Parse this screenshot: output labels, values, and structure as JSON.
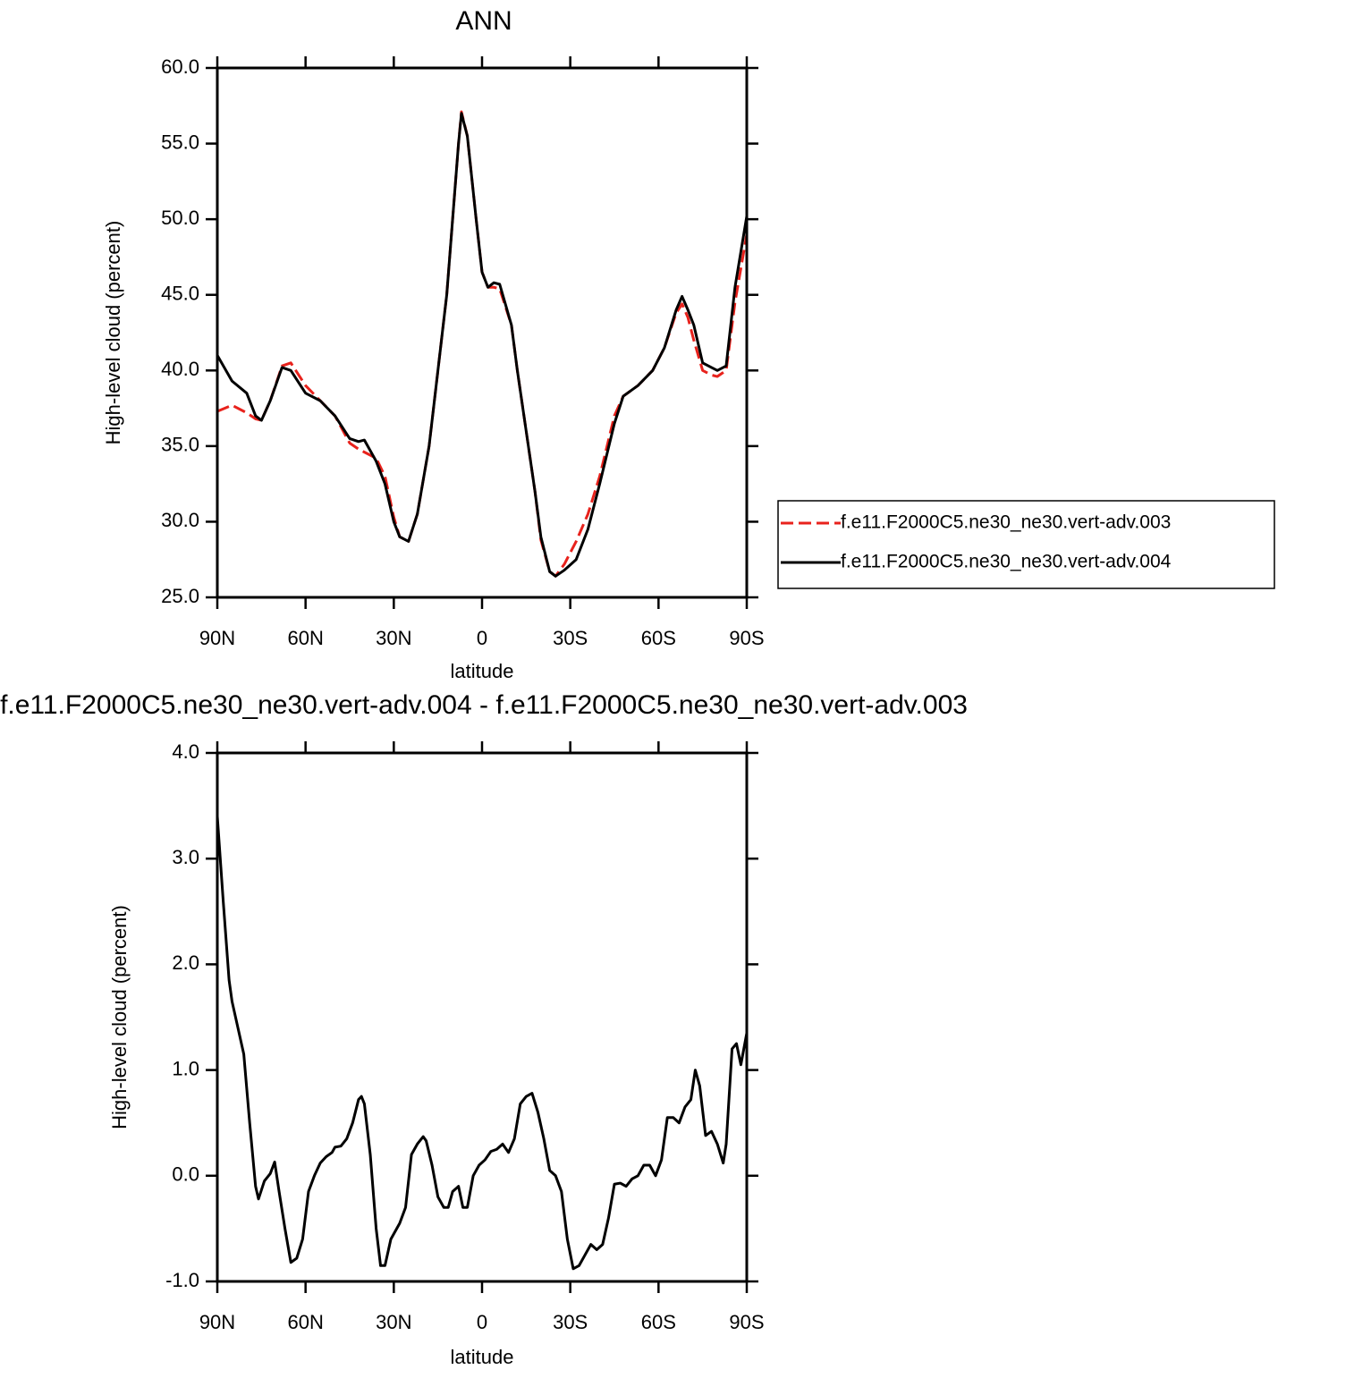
{
  "chart_data": [
    {
      "type": "line",
      "title": "ANN",
      "xlabel": "latitude",
      "ylabel": "High-level cloud (percent)",
      "xlim": [
        90,
        -90
      ],
      "ylim": [
        25,
        60
      ],
      "xticks": [
        {
          "value": 90,
          "label": "90N"
        },
        {
          "value": 60,
          "label": "60N"
        },
        {
          "value": 30,
          "label": "30N"
        },
        0,
        {
          "value": -30,
          "label": "30S"
        },
        {
          "value": -60,
          "label": "60S"
        },
        {
          "value": -90,
          "label": "90S"
        }
      ],
      "yticks": [
        {
          "value": 25,
          "label": "25.0"
        },
        {
          "value": 30,
          "label": "30.0"
        },
        {
          "value": 35,
          "label": "35.0"
        },
        {
          "value": 40,
          "label": "40.0"
        },
        {
          "value": 45,
          "label": "45.0"
        },
        {
          "value": 50,
          "label": "50.0"
        },
        {
          "value": 55,
          "label": "55.0"
        },
        {
          "value": 60,
          "label": "60.0"
        }
      ],
      "legend": "right",
      "x": [
        90,
        85,
        80,
        77,
        75,
        72,
        68,
        65,
        60,
        55,
        50,
        45,
        42,
        40,
        36,
        33,
        30,
        28,
        25,
        22,
        18,
        15,
        12,
        10,
        8,
        7,
        5,
        2,
        0,
        -2,
        -4,
        -6,
        -10,
        -12,
        -15,
        -18,
        -20,
        -23,
        -25,
        -28,
        -32,
        -36,
        -40,
        -45,
        -48,
        -53,
        -58,
        -62,
        -66,
        -68,
        -70,
        -72,
        -75,
        -78,
        -80,
        -83,
        -86,
        -90
      ],
      "series": [
        {
          "name": "f.e11.F2000C5.ne30_ne30.vert-adv.003",
          "color": "#e8221c",
          "line_style": "dashed",
          "values": [
            37.3,
            37.7,
            37.2,
            36.8,
            36.7,
            38.0,
            40.3,
            40.5,
            39.0,
            38.0,
            37.0,
            35.2,
            34.8,
            34.6,
            34.2,
            33.0,
            30.3,
            29.0,
            28.7,
            30.5,
            35.0,
            40.0,
            45.0,
            50.0,
            55.0,
            57.1,
            55.5,
            50.0,
            46.5,
            45.5,
            45.5,
            45.4,
            43.0,
            40.0,
            36.0,
            32.0,
            28.8,
            26.7,
            26.4,
            27.2,
            28.7,
            30.5,
            33.0,
            37.0,
            38.3,
            39.0,
            40.0,
            41.5,
            43.8,
            44.4,
            43.5,
            42.0,
            40.0,
            39.7,
            39.6,
            40.0,
            44.5,
            49.0
          ]
        },
        {
          "name": "f.e11.F2000C5.ne30_ne30.vert-adv.004",
          "color": "#000000",
          "line_style": "solid",
          "values": [
            41.0,
            39.3,
            38.5,
            37.0,
            36.7,
            38.0,
            40.2,
            40.0,
            38.5,
            38.0,
            37.0,
            35.5,
            35.3,
            35.4,
            34.0,
            32.5,
            30.0,
            29.0,
            28.7,
            30.5,
            35.0,
            40.0,
            45.0,
            50.0,
            55.0,
            57.0,
            55.5,
            50.0,
            46.5,
            45.5,
            45.8,
            45.7,
            43.0,
            40.0,
            36.0,
            32.0,
            29.0,
            26.7,
            26.4,
            26.8,
            27.5,
            29.5,
            32.5,
            36.5,
            38.3,
            39.0,
            40.0,
            41.5,
            44.0,
            44.9,
            44.0,
            43.0,
            40.5,
            40.2,
            40.0,
            40.3,
            45.5,
            50.2
          ]
        }
      ]
    },
    {
      "type": "line",
      "title": "f.e11.F2000C5.ne30_ne30.vert-adv.004 - f.e11.F2000C5.ne30_ne30.vert-adv.003",
      "xlabel": "latitude",
      "ylabel": "High-level cloud (percent)",
      "xlim": [
        90,
        -90
      ],
      "ylim": [
        -1,
        4
      ],
      "xticks": [
        {
          "value": 90,
          "label": "90N"
        },
        {
          "value": 60,
          "label": "60N"
        },
        {
          "value": 30,
          "label": "30N"
        },
        0,
        {
          "value": -30,
          "label": "30S"
        },
        {
          "value": -60,
          "label": "60S"
        },
        {
          "value": -90,
          "label": "90S"
        }
      ],
      "yticks": [
        {
          "value": -1,
          "label": "-1.0"
        },
        {
          "value": 0,
          "label": "0.0"
        },
        {
          "value": 1,
          "label": "1.0"
        },
        {
          "value": 2,
          "label": "2.0"
        },
        {
          "value": 3,
          "label": "3.0"
        },
        {
          "value": 4,
          "label": "4.0"
        }
      ],
      "color": "#000000",
      "x": [
        90,
        88,
        86,
        85,
        83,
        81,
        79,
        77,
        76,
        74,
        72,
        70.5,
        69,
        67,
        65,
        63,
        61,
        59,
        57,
        55,
        53,
        51,
        50,
        48,
        46,
        44,
        42,
        41,
        40,
        38,
        36,
        34.5,
        33,
        31,
        28,
        26,
        24,
        22,
        20,
        19,
        17,
        15,
        13,
        11.5,
        10,
        8,
        6.5,
        5,
        3,
        1,
        -1,
        -3,
        -5,
        -7,
        -9,
        -11,
        -13,
        -15,
        -17,
        -19,
        -21,
        -23,
        -25,
        -27,
        -29,
        -31,
        -33,
        -35,
        -37,
        -39,
        -41,
        -43,
        -45,
        -47,
        -49,
        -51,
        -53,
        -55,
        -57,
        -59,
        -61,
        -63,
        -65,
        -67,
        -69,
        -71,
        -72.5,
        -74,
        -76,
        -78,
        -80,
        -82,
        -83,
        -85,
        -86.5,
        -88,
        -90
      ],
      "values": [
        3.4,
        2.6,
        1.85,
        1.65,
        1.4,
        1.15,
        0.5,
        -0.1,
        -0.22,
        -0.05,
        0.02,
        0.13,
        -0.15,
        -0.5,
        -0.82,
        -0.78,
        -0.6,
        -0.15,
        0.0,
        0.12,
        0.18,
        0.22,
        0.27,
        0.28,
        0.35,
        0.5,
        0.72,
        0.75,
        0.68,
        0.2,
        -0.5,
        -0.85,
        -0.85,
        -0.6,
        -0.45,
        -0.3,
        0.2,
        0.3,
        0.37,
        0.33,
        0.1,
        -0.2,
        -0.3,
        -0.3,
        -0.15,
        -0.1,
        -0.3,
        -0.3,
        0.0,
        0.1,
        0.15,
        0.23,
        0.25,
        0.3,
        0.22,
        0.35,
        0.68,
        0.75,
        0.78,
        0.6,
        0.35,
        0.05,
        0.0,
        -0.15,
        -0.6,
        -0.88,
        -0.85,
        -0.75,
        -0.65,
        -0.7,
        -0.65,
        -0.4,
        -0.08,
        -0.07,
        -0.1,
        -0.03,
        0.0,
        0.1,
        0.1,
        0.0,
        0.15,
        0.55,
        0.55,
        0.5,
        0.65,
        0.72,
        1.0,
        0.85,
        0.38,
        0.42,
        0.3,
        0.12,
        0.3,
        1.2,
        1.25,
        1.05,
        1.35
      ]
    }
  ]
}
